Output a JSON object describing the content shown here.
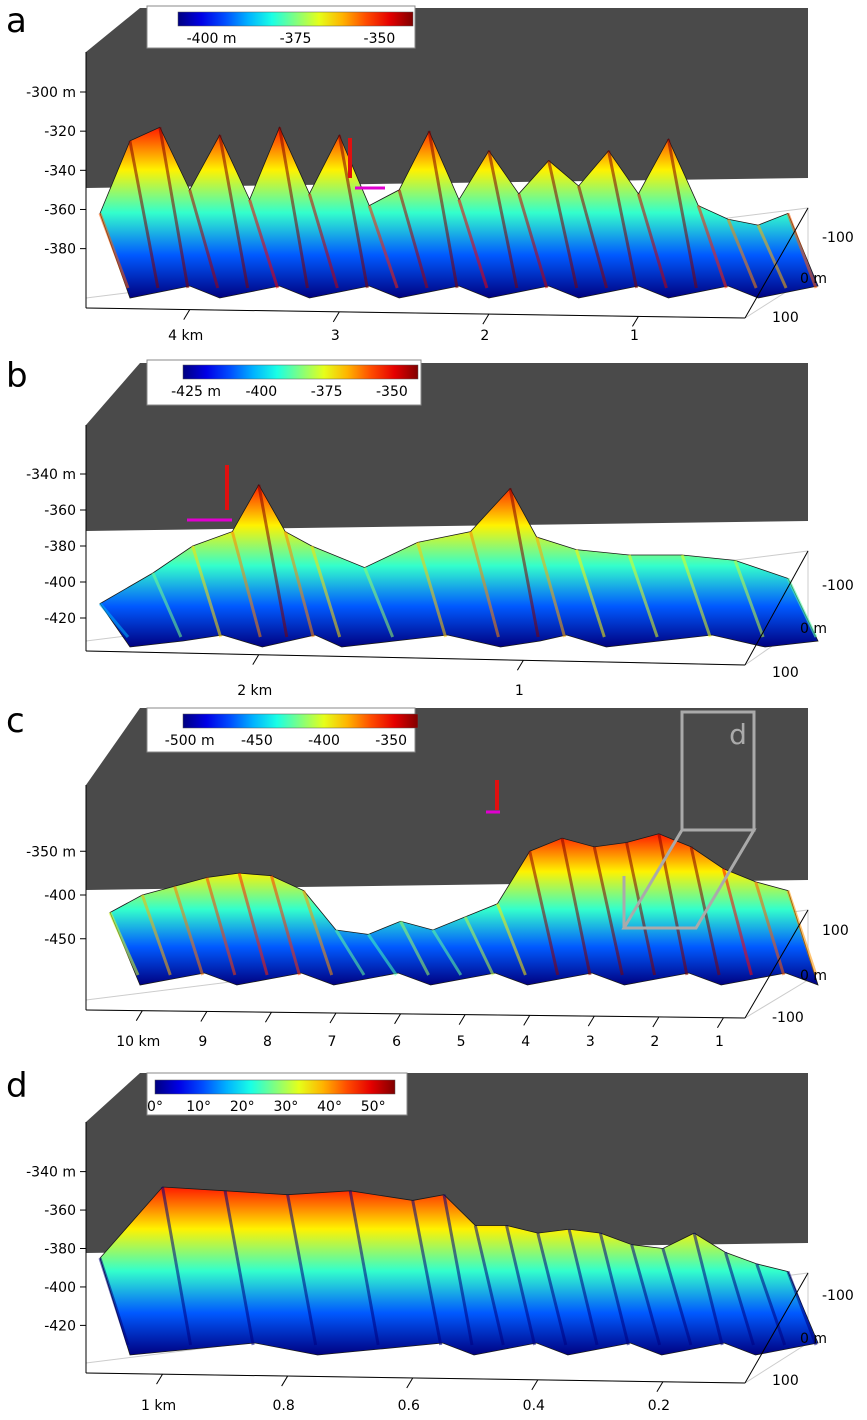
{
  "figure": {
    "panels": [
      {
        "id": "a",
        "label": "a"
      },
      {
        "id": "b",
        "label": "b"
      },
      {
        "id": "c",
        "label": "c"
      },
      {
        "id": "d",
        "label": "d"
      }
    ]
  },
  "chart_data": [
    {
      "panel": "a",
      "type": "surface3d",
      "title": "",
      "colormap": "jet",
      "colorbar": {
        "range": [
          -410,
          -340
        ],
        "ticks": [
          "-400 m",
          "-375",
          "-350"
        ],
        "tick_values": [
          -400,
          -375,
          -350
        ]
      },
      "z_axis": {
        "ticks": [
          "-300 m",
          "-320",
          "-340",
          "-360",
          "-380"
        ],
        "tick_values": [
          -300,
          -320,
          -340,
          -360,
          -380
        ],
        "range": [
          -395,
          -300
        ]
      },
      "x_axis": {
        "ticks": [
          "4 km",
          "3",
          "2",
          "1"
        ],
        "tick_values": [
          4,
          3,
          2,
          1
        ],
        "range": [
          0,
          4.6
        ]
      },
      "y_axis": {
        "ticks": [
          "-100",
          "0 m",
          "100"
        ],
        "tick_values": [
          -100,
          0,
          100
        ]
      },
      "profile": {
        "x": [
          4.6,
          4.4,
          4.2,
          4.0,
          3.8,
          3.6,
          3.4,
          3.2,
          3.0,
          2.8,
          2.6,
          2.4,
          2.2,
          2.0,
          1.8,
          1.6,
          1.4,
          1.2,
          1.0,
          0.8,
          0.6,
          0.4,
          0.2,
          0.0
        ],
        "z": [
          -362,
          -325,
          -318,
          -350,
          -322,
          -355,
          -318,
          -352,
          -322,
          -358,
          -350,
          -320,
          -355,
          -330,
          -352,
          -335,
          -348,
          -330,
          -352,
          -324,
          -358,
          -365,
          -368,
          -362
        ]
      },
      "scale_markers": [
        {
          "type": "vertical",
          "color": "#e01010"
        },
        {
          "type": "horizontal",
          "color": "#e000d0"
        }
      ]
    },
    {
      "panel": "b",
      "type": "surface3d",
      "title": "",
      "colormap": "jet",
      "colorbar": {
        "range": [
          -430,
          -340
        ],
        "ticks": [
          "-425 m",
          "-400",
          "-375",
          "-350"
        ],
        "tick_values": [
          -425,
          -400,
          -375,
          -350
        ]
      },
      "z_axis": {
        "ticks": [
          "-340 m",
          "-360",
          "-380",
          "-400",
          "-420"
        ],
        "tick_values": [
          -340,
          -360,
          -380,
          -400,
          -420
        ],
        "range": [
          -425,
          -335
        ]
      },
      "x_axis": {
        "ticks": [
          "2 km",
          "1"
        ],
        "tick_values": [
          2,
          1
        ],
        "range": [
          0,
          2.6
        ]
      },
      "y_axis": {
        "ticks": [
          "-100",
          "0 m",
          "100"
        ],
        "tick_values": [
          -100,
          0,
          100
        ]
      },
      "profile": {
        "x": [
          2.6,
          2.4,
          2.25,
          2.1,
          2.0,
          1.9,
          1.8,
          1.6,
          1.4,
          1.2,
          1.05,
          0.95,
          0.8,
          0.6,
          0.4,
          0.2,
          0.0
        ],
        "z": [
          -412,
          -395,
          -380,
          -372,
          -346,
          -372,
          -380,
          -392,
          -378,
          -372,
          -348,
          -375,
          -382,
          -385,
          -385,
          -388,
          -398
        ]
      },
      "scale_markers": [
        {
          "type": "vertical",
          "color": "#e01010"
        },
        {
          "type": "horizontal",
          "color": "#e000d0"
        }
      ]
    },
    {
      "panel": "c",
      "type": "surface3d",
      "title": "",
      "colormap": "jet",
      "colorbar": {
        "range": [
          -505,
          -330
        ],
        "ticks": [
          "-500 m",
          "-450",
          "-400",
          "-350"
        ],
        "tick_values": [
          -500,
          -450,
          -400,
          -350
        ]
      },
      "z_axis": {
        "ticks": [
          "-350 m",
          "-400",
          "-450"
        ],
        "tick_values": [
          -350,
          -400,
          -450
        ],
        "range": [
          -480,
          -320
        ]
      },
      "x_axis": {
        "ticks": [
          "10 km",
          "9",
          "8",
          "7",
          "6",
          "5",
          "4",
          "3",
          "2",
          "1"
        ],
        "tick_values": [
          10,
          9,
          8,
          7,
          6,
          5,
          4,
          3,
          2,
          1
        ],
        "range": [
          0,
          10.5
        ]
      },
      "y_axis": {
        "ticks": [
          "100",
          "0 m",
          "-100"
        ],
        "tick_values": [
          100,
          0,
          -100
        ]
      },
      "profile": {
        "x": [
          10.5,
          10,
          9.5,
          9,
          8.5,
          8,
          7.5,
          7,
          6.5,
          6,
          5.5,
          5,
          4.5,
          4,
          3.5,
          3,
          2.5,
          2,
          1.5,
          1,
          0.5,
          0
        ],
        "z": [
          -420,
          -400,
          -390,
          -380,
          -375,
          -378,
          -395,
          -440,
          -445,
          -430,
          -440,
          -425,
          -410,
          -350,
          -335,
          -345,
          -340,
          -330,
          -345,
          -370,
          -385,
          -395
        ]
      },
      "inset_box_label": "d",
      "scale_markers": [
        {
          "type": "vertical",
          "color": "#e01010"
        },
        {
          "type": "horizontal",
          "color": "#e000d0"
        }
      ]
    },
    {
      "panel": "d",
      "type": "surface3d",
      "title": "",
      "colormap": "jet",
      "color_variable": "slope",
      "colorbar": {
        "range": [
          0,
          55
        ],
        "ticks": [
          "0°",
          "10°",
          "20°",
          "30°",
          "40°",
          "50°"
        ],
        "tick_values": [
          0,
          10,
          20,
          30,
          40,
          50
        ]
      },
      "z_axis": {
        "ticks": [
          "-340 m",
          "-360",
          "-380",
          "-400",
          "-420"
        ],
        "tick_values": [
          -340,
          -360,
          -380,
          -400,
          -420
        ],
        "range": [
          -425,
          -335
        ]
      },
      "x_axis": {
        "ticks": [
          "1 km",
          "0.8",
          "0.6",
          "0.4",
          "0.2"
        ],
        "tick_values": [
          1,
          0.8,
          0.6,
          0.4,
          0.2
        ],
        "range": [
          0,
          1.1
        ]
      },
      "y_axis": {
        "ticks": [
          "-100",
          "0 m",
          "100"
        ],
        "tick_values": [
          -100,
          0,
          100
        ]
      },
      "profile": {
        "x": [
          1.1,
          1.0,
          0.9,
          0.8,
          0.7,
          0.6,
          0.55,
          0.5,
          0.45,
          0.4,
          0.35,
          0.3,
          0.25,
          0.2,
          0.15,
          0.1,
          0.05,
          0.0
        ],
        "z": [
          -385,
          -348,
          -350,
          -352,
          -350,
          -355,
          -352,
          -368,
          -368,
          -372,
          -370,
          -372,
          -378,
          -380,
          -372,
          -382,
          -388,
          -392
        ]
      },
      "scale_markers": [
        {
          "type": "vertical",
          "color": "#e01010"
        },
        {
          "type": "horizontal",
          "color": "#e000d0"
        }
      ]
    }
  ]
}
